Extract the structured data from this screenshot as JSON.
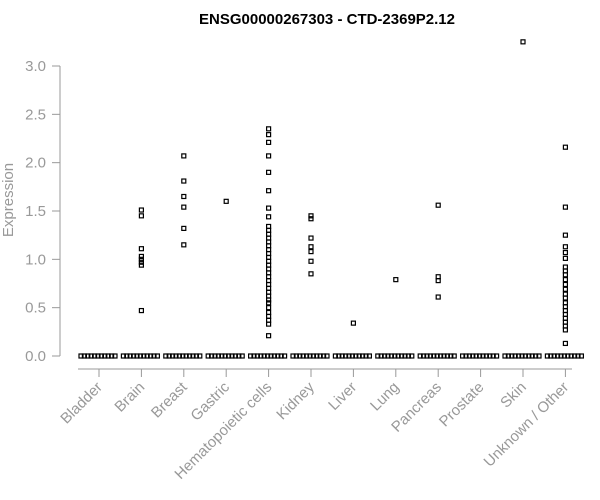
{
  "chart_data": {
    "type": "scatter",
    "title": "ENSG00000267303 - CTD-2369P2.12",
    "xlabel": "",
    "ylabel": "Expression",
    "ylim": [
      0,
      3.25
    ],
    "yticks": [
      "0.0",
      "0.5",
      "1.0",
      "1.5",
      "2.0",
      "2.5",
      "3.0"
    ],
    "grid": false,
    "categories": [
      "Bladder",
      "Brain",
      "Breast",
      "Gastric",
      "Hematopoietic cells",
      "Kidney",
      "Liver",
      "Lung",
      "Pancreas",
      "Prostate",
      "Skin",
      "Unknown / Other"
    ],
    "series": [
      {
        "category": "Bladder",
        "values": [
          0
        ]
      },
      {
        "category": "Brain",
        "values": [
          0,
          0.47,
          0.94,
          0.97,
          1.0,
          1.03,
          1.11,
          1.45,
          1.51
        ]
      },
      {
        "category": "Breast",
        "values": [
          0,
          1.15,
          1.32,
          1.54,
          1.65,
          1.81,
          2.07
        ]
      },
      {
        "category": "Gastric",
        "values": [
          0,
          1.6
        ]
      },
      {
        "category": "Hematopoietic cells",
        "values": [
          0,
          0.21,
          0.33,
          0.37,
          0.41,
          0.45,
          0.5,
          0.55,
          0.58,
          0.62,
          0.66,
          0.7,
          0.74,
          0.78,
          0.82,
          0.86,
          0.9,
          0.94,
          0.98,
          1.02,
          1.06,
          1.1,
          1.14,
          1.18,
          1.22,
          1.26,
          1.3,
          1.34,
          1.44,
          1.53,
          1.71,
          1.9,
          2.07,
          2.21,
          2.29,
          2.35
        ]
      },
      {
        "category": "Kidney",
        "values": [
          0,
          0.85,
          0.98,
          1.08,
          1.13,
          1.22,
          1.42,
          1.45
        ]
      },
      {
        "category": "Liver",
        "values": [
          0,
          0.34
        ]
      },
      {
        "category": "Lung",
        "values": [
          0,
          0.79
        ]
      },
      {
        "category": "Pancreas",
        "values": [
          0,
          0.61,
          0.78,
          0.82,
          1.56
        ]
      },
      {
        "category": "Prostate",
        "values": [
          0
        ]
      },
      {
        "category": "Skin",
        "values": [
          0,
          3.25
        ]
      },
      {
        "category": "Unknown / Other",
        "values": [
          0,
          0.13,
          0.27,
          0.31,
          0.35,
          0.39,
          0.43,
          0.47,
          0.51,
          0.55,
          0.6,
          0.64,
          0.69,
          0.74,
          0.79,
          0.84,
          0.88,
          0.92,
          1.01,
          1.07,
          1.13,
          1.25,
          1.54,
          2.16
        ]
      }
    ]
  }
}
